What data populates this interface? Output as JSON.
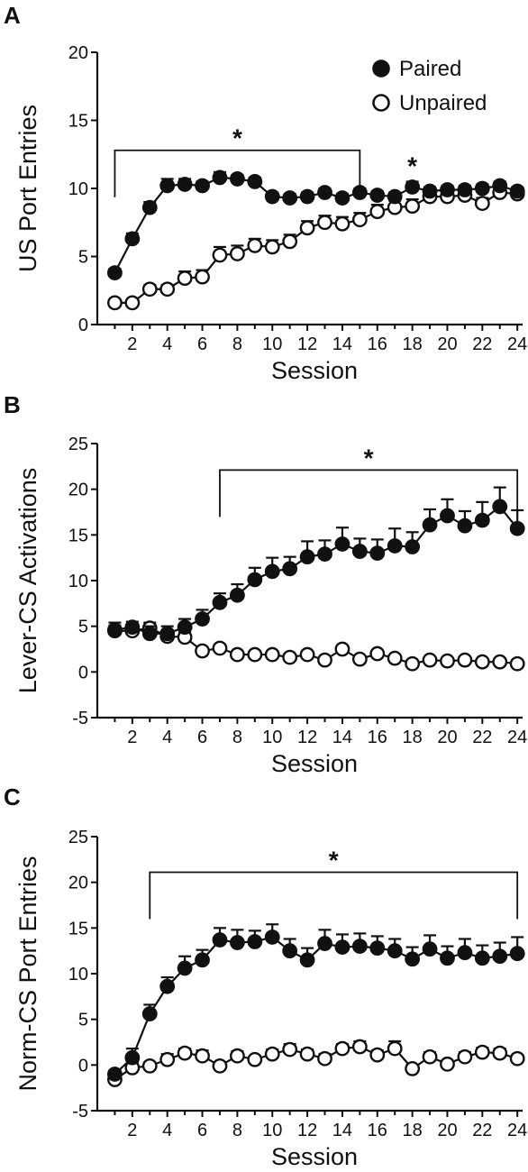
{
  "legend": [
    {
      "label": "Paired",
      "marker": "filled-circle",
      "color": "#111111"
    },
    {
      "label": "Unpaired",
      "marker": "open-circle",
      "color": "#111111"
    }
  ],
  "chart_data": [
    {
      "panel": "A",
      "type": "line",
      "xlabel": "Session",
      "ylabel": "US Port Entries",
      "xlim": [
        0,
        24.3
      ],
      "ylim": [
        0,
        20
      ],
      "xticks": [
        2,
        4,
        6,
        8,
        10,
        12,
        14,
        16,
        18,
        20,
        22,
        24
      ],
      "yticks": [
        0,
        5,
        10,
        15,
        20
      ],
      "x": [
        1,
        2,
        3,
        4,
        5,
        6,
        7,
        8,
        9,
        10,
        11,
        12,
        13,
        14,
        15,
        16,
        17,
        18,
        19,
        20,
        21,
        22,
        23,
        24
      ],
      "series": [
        {
          "name": "Paired",
          "marker": "filled",
          "values": [
            3.8,
            6.3,
            8.6,
            10.2,
            10.3,
            10.2,
            10.8,
            10.7,
            10.5,
            9.4,
            9.3,
            9.4,
            9.7,
            9.3,
            9.7,
            9.5,
            9.4,
            10.1,
            9.8,
            9.9,
            9.9,
            10.0,
            10.2,
            9.8
          ],
          "errors": [
            0.3,
            0.4,
            0.4,
            0.5,
            0.4,
            0.3,
            0.4,
            0.3,
            0.3,
            0.3,
            0.3,
            0.3,
            0.3,
            0.3,
            0.3,
            0.3,
            0.3,
            0.4,
            0.3,
            0.3,
            0.3,
            0.3,
            0.3,
            0.3
          ]
        },
        {
          "name": "Unpaired",
          "marker": "open",
          "values": [
            1.6,
            1.6,
            2.6,
            2.6,
            3.4,
            3.5,
            5.1,
            5.2,
            5.8,
            5.7,
            6.1,
            7.1,
            7.5,
            7.4,
            7.7,
            8.3,
            8.6,
            8.7,
            9.4,
            9.4,
            9.5,
            8.9,
            9.7,
            9.6
          ],
          "errors": [
            0.2,
            0.2,
            0.3,
            0.3,
            0.5,
            0.5,
            0.6,
            0.6,
            0.5,
            0.5,
            0.5,
            0.5,
            0.5,
            0.5,
            0.5,
            0.5,
            0.5,
            0.5,
            0.4,
            0.4,
            0.4,
            0.4,
            0.4,
            0.3
          ]
        }
      ],
      "annotations": [
        {
          "text": "*",
          "bracket_from": 1,
          "bracket_to": 15,
          "bracket_y": 12.8
        },
        {
          "text": "*",
          "at_x": 18
        }
      ]
    },
    {
      "panel": "B",
      "type": "line",
      "xlabel": "Session",
      "ylabel": "Lever-CS Activations",
      "xlim": [
        0,
        24.3
      ],
      "ylim": [
        -5,
        25
      ],
      "xticks": [
        2,
        4,
        6,
        8,
        10,
        12,
        14,
        16,
        18,
        20,
        22,
        24
      ],
      "yticks": [
        -5,
        0,
        5,
        10,
        15,
        20,
        25
      ],
      "x": [
        1,
        2,
        3,
        4,
        5,
        6,
        7,
        8,
        9,
        10,
        11,
        12,
        13,
        14,
        15,
        16,
        17,
        18,
        19,
        20,
        21,
        22,
        23,
        24
      ],
      "series": [
        {
          "name": "Paired",
          "marker": "filled",
          "values": [
            4.6,
            4.9,
            4.2,
            4.2,
            4.9,
            5.8,
            7.6,
            8.4,
            10.1,
            11.0,
            11.3,
            12.6,
            12.9,
            14.0,
            13.2,
            13.0,
            13.8,
            13.7,
            16.1,
            17.1,
            16.0,
            16.6,
            18.1,
            15.7
          ],
          "errors": [
            0.8,
            0.6,
            0.8,
            0.8,
            0.9,
            1.0,
            1.0,
            1.2,
            1.3,
            1.5,
            1.3,
            1.7,
            1.5,
            1.8,
            1.4,
            1.5,
            1.9,
            1.6,
            1.7,
            1.8,
            1.6,
            2.0,
            2.1,
            2.0
          ]
        },
        {
          "name": "Unpaired",
          "marker": "open",
          "values": [
            4.5,
            4.5,
            4.8,
            3.9,
            3.8,
            2.3,
            2.6,
            1.9,
            1.9,
            1.9,
            1.6,
            1.9,
            1.3,
            2.5,
            1.4,
            2.0,
            1.5,
            0.9,
            1.3,
            1.2,
            1.3,
            1.1,
            1.1,
            0.9
          ],
          "errors": [
            0.6,
            0.6,
            0.6,
            0.5,
            0.5,
            0.4,
            0.4,
            0.3,
            0.3,
            0.3,
            0.3,
            0.3,
            0.3,
            0.3,
            0.3,
            0.3,
            0.3,
            0.2,
            0.2,
            0.2,
            0.2,
            0.2,
            0.2,
            0.2
          ]
        }
      ],
      "annotations": [
        {
          "text": "*",
          "bracket_from": 7,
          "bracket_to": 24,
          "bracket_y": 22.1
        }
      ]
    },
    {
      "panel": "C",
      "type": "line",
      "xlabel": "Session",
      "ylabel": "Norm-CS Port Entries",
      "xlim": [
        0,
        24.3
      ],
      "ylim": [
        -5,
        25
      ],
      "xticks": [
        2,
        4,
        6,
        8,
        10,
        12,
        14,
        16,
        18,
        20,
        22,
        24
      ],
      "yticks": [
        -5,
        0,
        5,
        10,
        15,
        20,
        25
      ],
      "x": [
        1,
        2,
        3,
        4,
        5,
        6,
        7,
        8,
        9,
        10,
        11,
        12,
        13,
        14,
        15,
        16,
        17,
        18,
        19,
        20,
        21,
        22,
        23,
        24
      ],
      "series": [
        {
          "name": "Paired",
          "marker": "filled",
          "values": [
            -1.0,
            0.8,
            5.6,
            8.6,
            10.6,
            11.5,
            13.7,
            13.4,
            13.5,
            14.0,
            12.5,
            11.5,
            13.3,
            12.9,
            13.0,
            12.8,
            12.5,
            11.6,
            12.7,
            11.7,
            12.3,
            11.7,
            11.9,
            12.2
          ],
          "errors": [
            0.4,
            1.0,
            1.0,
            1.0,
            1.3,
            1.1,
            1.3,
            1.4,
            1.2,
            1.4,
            1.3,
            1.3,
            1.5,
            1.4,
            1.4,
            1.3,
            1.3,
            1.3,
            1.5,
            1.3,
            1.5,
            1.4,
            1.5,
            1.8
          ]
        },
        {
          "name": "Unpaired",
          "marker": "open",
          "values": [
            -1.6,
            -0.3,
            -0.1,
            0.6,
            1.3,
            1.0,
            -0.1,
            1.0,
            0.6,
            1.2,
            1.7,
            1.2,
            0.7,
            1.8,
            2.0,
            1.1,
            1.8,
            -0.4,
            0.9,
            0.1,
            0.9,
            1.4,
            1.3,
            0.7
          ],
          "errors": [
            0.4,
            0.5,
            0.4,
            0.6,
            0.5,
            0.6,
            0.4,
            0.5,
            0.4,
            0.5,
            0.6,
            0.5,
            0.5,
            0.5,
            0.6,
            0.5,
            0.8,
            0.4,
            0.5,
            0.4,
            0.5,
            0.5,
            0.5,
            0.4
          ]
        }
      ],
      "annotations": [
        {
          "text": "*",
          "bracket_from": 3,
          "bracket_to": 24,
          "bracket_y": 21.1
        }
      ]
    }
  ]
}
